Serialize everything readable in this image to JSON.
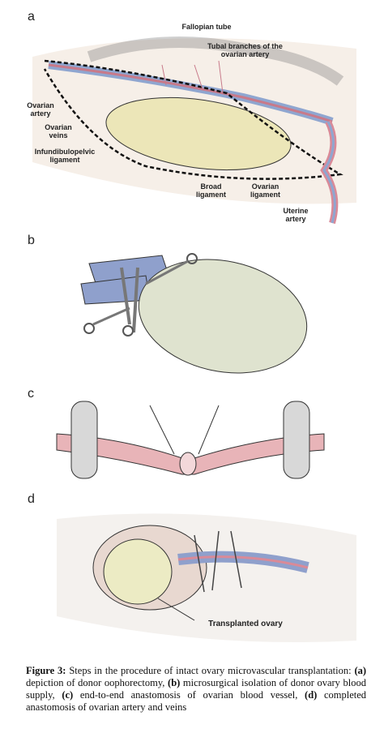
{
  "panels": [
    {
      "letter": "a",
      "labels": [
        "Fallopian tube",
        "Tubal branches of the ovarian artery",
        "Ovarian artery",
        "Ovarian veins",
        "Infundibulopelvic ligament",
        "Broad ligament",
        "Ovarian ligament",
        "Uterine artery"
      ]
    },
    {
      "letter": "b"
    },
    {
      "letter": "c"
    },
    {
      "letter": "d",
      "labels": [
        "Transplanted ovary"
      ]
    }
  ],
  "caption": {
    "label": "Figure 3:",
    "intro": "Steps in the procedure of intact ovary microvascular transplantation:",
    "items": [
      {
        "letter": "(a)",
        "text": "depiction of donor oophorectomy,"
      },
      {
        "letter": "(b)",
        "text": "microsurgical isolation of donor ovary blood supply,"
      },
      {
        "letter": "(c)",
        "text": "end-to-end anastomosis of ovarian blood vessel,"
      },
      {
        "letter": "(d)",
        "text": "completed anastomosis of ovarian artery and veins"
      }
    ]
  }
}
